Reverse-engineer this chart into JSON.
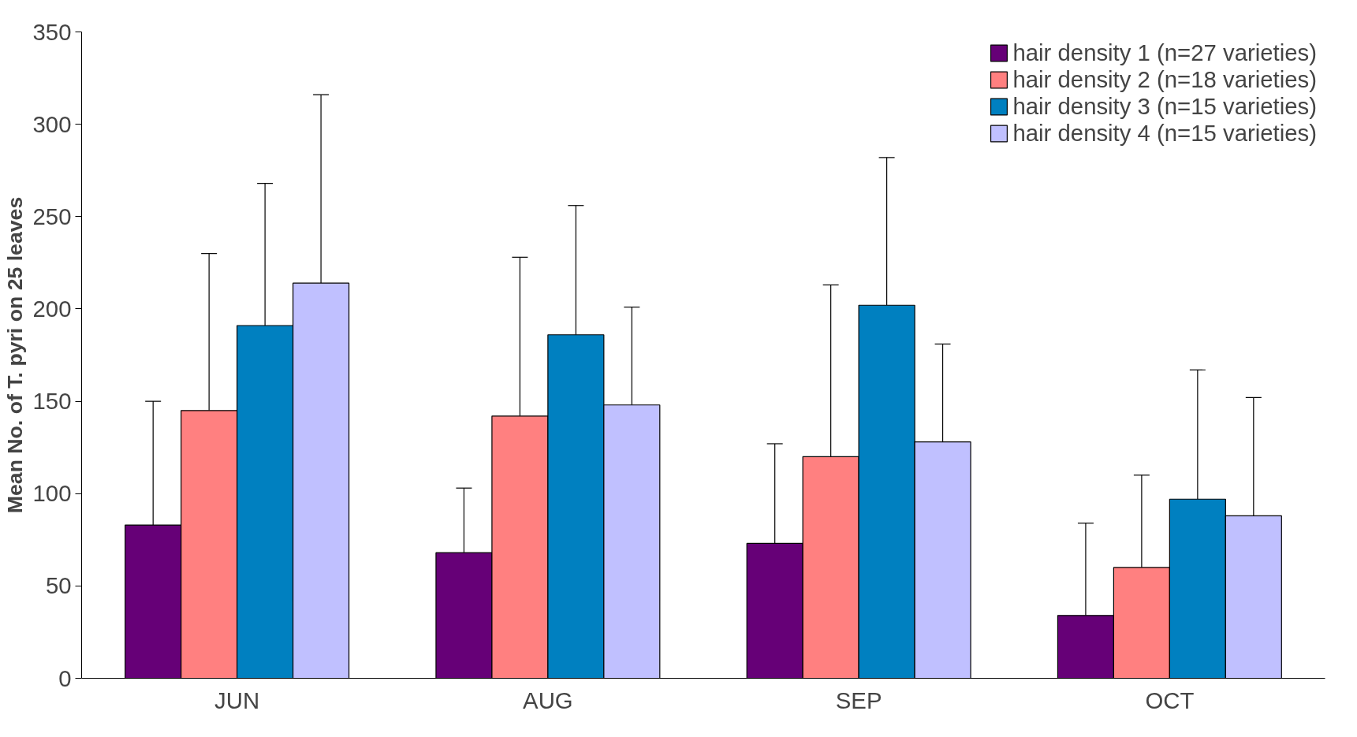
{
  "chart_data": {
    "type": "bar",
    "ylabel": "Mean No. of T. pyri on 25 leaves",
    "categories": [
      "JUN",
      "AUG",
      "SEP",
      "OCT"
    ],
    "series": [
      {
        "name": "hair density 1 (n=27 varieties)",
        "color": "#660077",
        "values": [
          83,
          68,
          73,
          34
        ],
        "errors": [
          [
            83,
            150
          ],
          [
            68,
            103
          ],
          [
            73,
            127
          ],
          [
            34,
            84
          ]
        ]
      },
      {
        "name": "hair density 2 (n=18 varieties)",
        "color": "#ff8080",
        "values": [
          145,
          142,
          120,
          60
        ],
        "errors": [
          [
            145,
            230
          ],
          [
            142,
            228
          ],
          [
            120,
            213
          ],
          [
            60,
            110
          ]
        ]
      },
      {
        "name": "hair density 3 (n=15 varieties)",
        "color": "#0080c0",
        "values": [
          191,
          186,
          202,
          97
        ],
        "errors": [
          [
            191,
            268
          ],
          [
            186,
            256
          ],
          [
            202,
            282
          ],
          [
            97,
            167
          ]
        ]
      },
      {
        "name": "hair density 4 (n=15 varieties)",
        "color": "#c0c0ff",
        "values": [
          214,
          148,
          128,
          88
        ],
        "errors": [
          [
            214,
            316
          ],
          [
            148,
            201
          ],
          [
            128,
            181
          ],
          [
            88,
            152
          ]
        ]
      }
    ],
    "ylim": [
      0,
      350
    ],
    "yticks": [
      0,
      50,
      100,
      150,
      200,
      250,
      300,
      350
    ],
    "grid": false,
    "legend": "top right"
  }
}
